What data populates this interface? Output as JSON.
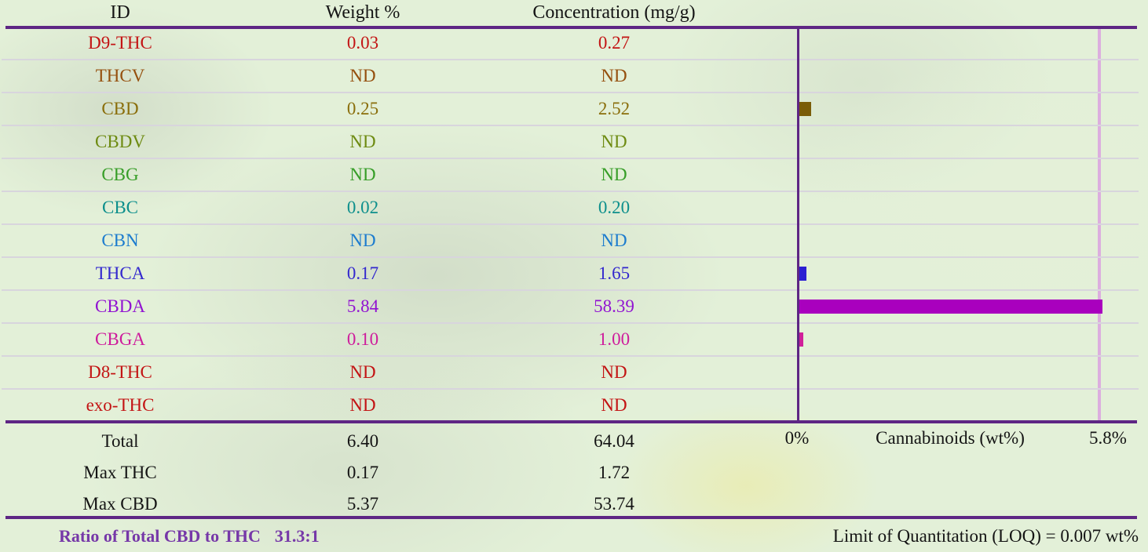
{
  "table": {
    "headers": [
      "ID",
      "Weight %",
      "Concentration (mg/g)"
    ],
    "rows": [
      {
        "id": "D9-THC",
        "weight": "0.03",
        "concentration": "0.27",
        "color": "#C31414"
      },
      {
        "id": "THCV",
        "weight": "ND",
        "concentration": "ND",
        "color": "#95500E"
      },
      {
        "id": "CBD",
        "weight": "0.25",
        "concentration": "2.52",
        "color": "#8A6E0B"
      },
      {
        "id": "CBDV",
        "weight": "ND",
        "concentration": "ND",
        "color": "#6E8B12"
      },
      {
        "id": "CBG",
        "weight": "ND",
        "concentration": "ND",
        "color": "#379E28"
      },
      {
        "id": "CBC",
        "weight": "0.02",
        "concentration": "0.20",
        "color": "#0D8F8C"
      },
      {
        "id": "CBN",
        "weight": "ND",
        "concentration": "ND",
        "color": "#1D7CCE"
      },
      {
        "id": "THCA",
        "weight": "0.17",
        "concentration": "1.65",
        "color": "#3328CE"
      },
      {
        "id": "CBDA",
        "weight": "5.84",
        "concentration": "58.39",
        "color": "#9113D1"
      },
      {
        "id": "CBGA",
        "weight": "0.10",
        "concentration": "1.00",
        "color": "#CE1C9C"
      },
      {
        "id": "D8-THC",
        "weight": "ND",
        "concentration": "ND",
        "color": "#C31414"
      },
      {
        "id": "exo-THC",
        "weight": "ND",
        "concentration": "ND",
        "color": "#C31414"
      }
    ],
    "summary": [
      {
        "label": "Total",
        "weight": "6.40",
        "concentration": "64.04"
      },
      {
        "label": "Max THC",
        "weight": "0.17",
        "concentration": "1.72"
      },
      {
        "label": "Max CBD",
        "weight": "5.37",
        "concentration": "53.74"
      }
    ]
  },
  "chart_data": {
    "type": "bar",
    "orientation": "horizontal",
    "xlabel": "Cannabinoids (wt%)",
    "x_min_label": "0%",
    "x_max_label": "5.8%",
    "xlim": [
      0,
      5.8
    ],
    "grid": "row-aligned horizontal gridlines",
    "categories": [
      "D9-THC",
      "THCV",
      "CBD",
      "CBDV",
      "CBG",
      "CBC",
      "CBN",
      "THCA",
      "CBDA",
      "CBGA",
      "D8-THC",
      "exo-THC"
    ],
    "values": [
      0.03,
      null,
      0.25,
      null,
      null,
      0.02,
      null,
      0.17,
      5.84,
      0.1,
      null,
      null
    ],
    "bar_colors": [
      "#B51212",
      null,
      "#7A5C08",
      null,
      null,
      "#0D8F8C",
      null,
      "#2C1FD2",
      "#A900BE",
      "#D0209A",
      null,
      null
    ]
  },
  "footer": {
    "ratio_label": "Ratio of Total CBD to THC",
    "ratio_value": "31.3:1",
    "loq_text": "Limit of Quantitation (LOQ) = 0.007 wt%"
  },
  "palette": {
    "rule_purple": "#5E2684",
    "separator_gray": "#D8D5DD",
    "max_gridline_plum": "#DCAEDF",
    "ratio_text_purple": "#7638A8",
    "body_text_black": "#141414",
    "background_green": "#E3F0D8"
  }
}
